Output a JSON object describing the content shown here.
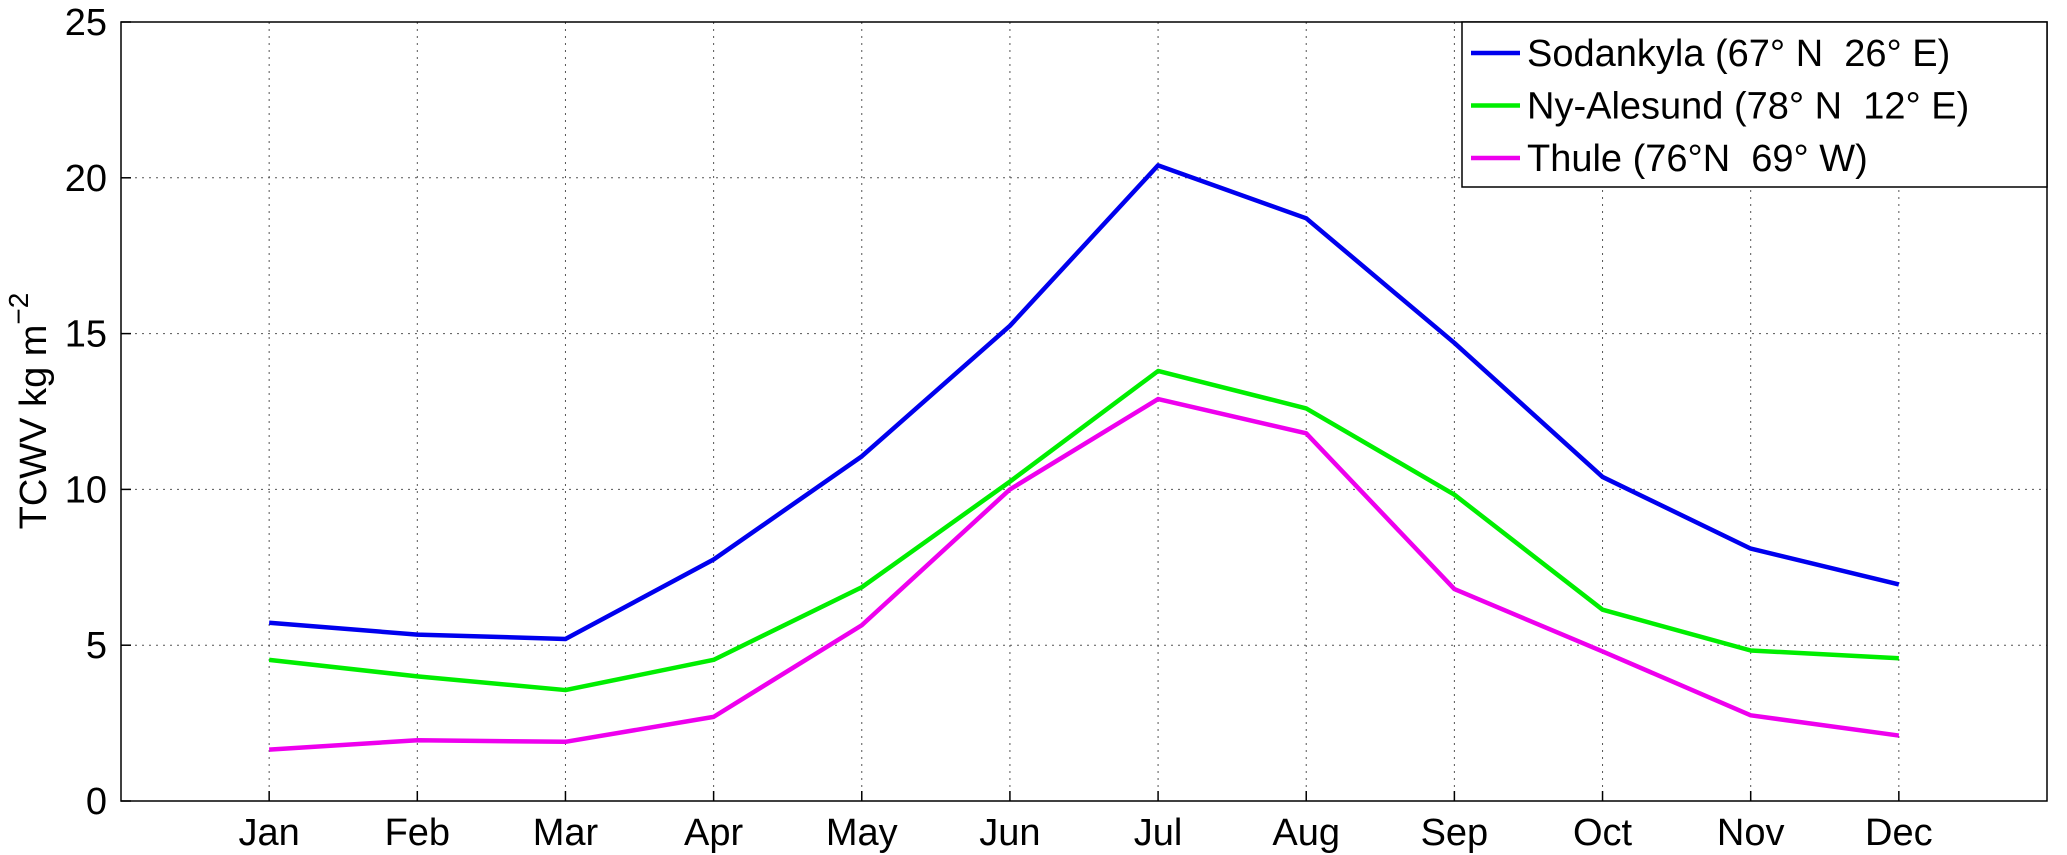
{
  "chart_data": {
    "type": "line",
    "y_label": "TCWV kg m",
    "y_label_exponent": "−2",
    "categories": [
      "Jan",
      "Feb",
      "Mar",
      "Apr",
      "May",
      "Jun",
      "Jul",
      "Aug",
      "Sep",
      "Oct",
      "Nov",
      "Dec"
    ],
    "series": [
      {
        "name": "Sodankyla (67° N  26° E)",
        "color": "#0000ee",
        "values": [
          5.72,
          5.34,
          5.2,
          7.75,
          11.06,
          15.25,
          20.4,
          18.7,
          14.7,
          10.4,
          8.1,
          6.95
        ]
      },
      {
        "name": "Ny-Alesund (78° N  12° E)",
        "color": "#00ee00",
        "values": [
          4.53,
          4.0,
          3.56,
          4.53,
          6.86,
          10.25,
          13.8,
          12.6,
          9.83,
          6.14,
          4.83,
          4.58
        ]
      },
      {
        "name": "Thule (76°N  69° W)",
        "color": "#ee00ee",
        "values": [
          1.65,
          1.95,
          1.9,
          2.7,
          5.64,
          10.0,
          12.9,
          11.8,
          6.8,
          4.8,
          2.75,
          2.1
        ]
      }
    ],
    "ylim": [
      0,
      25
    ],
    "yticks": [
      0,
      5,
      10,
      15,
      20,
      25
    ],
    "grid": true,
    "legend": "upper right"
  }
}
